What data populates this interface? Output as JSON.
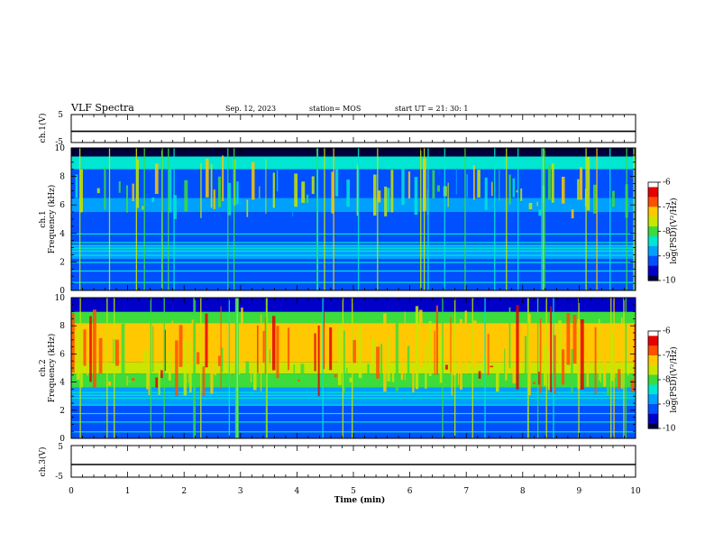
{
  "header": {
    "title": "VLF Spectra",
    "date": "Sep. 12, 2023",
    "station": "station= MOS",
    "start": "start UT =  21: 30: 1"
  },
  "colors": {
    "axis": "#000000",
    "colormap": [
      "#00003c",
      "#0000c8",
      "#0050ff",
      "#00a0ff",
      "#00e6d2",
      "#3cdc3c",
      "#c8e600",
      "#ffc800",
      "#ff5000",
      "#e60000",
      "#ffffff"
    ]
  },
  "chart_data": [
    {
      "type": "line",
      "name": "ch1-waveform",
      "ylabel": "ch.1(V)",
      "ylim": [
        -5,
        5
      ],
      "yticks": [
        "5",
        "-5"
      ],
      "xlim": [
        0,
        10
      ],
      "series": [
        {
          "values": [
            -1,
            -1
          ]
        }
      ]
    },
    {
      "type": "heatmap",
      "name": "ch1-spectrogram",
      "ylabel_lines": [
        "ch.1",
        "Frequency (kHz)"
      ],
      "ylim": [
        0,
        10
      ],
      "yticks": [
        "0",
        "2",
        "4",
        "6",
        "8",
        "10"
      ],
      "xlim": [
        0,
        10
      ],
      "colorbar": {
        "label": "log(PSD)(V²/Hz)",
        "ticks": [
          "-6",
          "-7",
          "-8",
          "-9",
          "-10"
        ],
        "range": [
          -10,
          -6
        ]
      }
    },
    {
      "type": "heatmap",
      "name": "ch2-spectrogram",
      "ylabel_lines": [
        "ch.2",
        "Frequency (kHz)"
      ],
      "ylim": [
        0,
        10
      ],
      "yticks": [
        "0",
        "2",
        "4",
        "6",
        "8",
        "10"
      ],
      "xlim": [
        0,
        10
      ],
      "colorbar": {
        "label": "log(PSD)(V²/Hz)",
        "ticks": [
          "-6",
          "-7",
          "-8",
          "-9",
          "-10"
        ],
        "range": [
          -10,
          -6
        ]
      }
    },
    {
      "type": "line",
      "name": "ch3-waveform",
      "ylabel": "ch.3(V)",
      "ylim": [
        -5,
        5
      ],
      "yticks": [
        "5",
        "-5"
      ],
      "xlim": [
        0,
        10
      ],
      "series": [
        {
          "values": [
            -1,
            -1
          ]
        }
      ],
      "xlabel": "Time (min)",
      "xticks": [
        "0",
        "1",
        "2",
        "3",
        "4",
        "5",
        "6",
        "7",
        "8",
        "9",
        "10"
      ]
    }
  ]
}
